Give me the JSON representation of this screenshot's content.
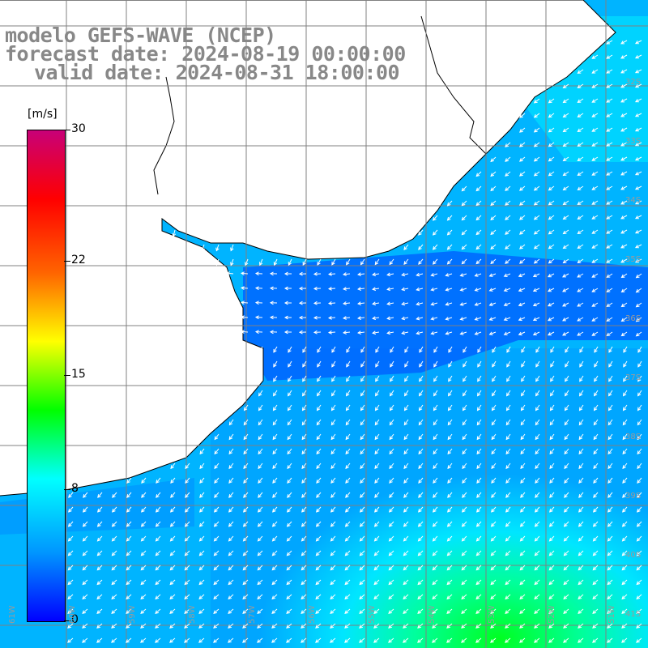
{
  "title": {
    "line1": "modelo GEFS-WAVE (NCEP)",
    "line2": "forecast date: 2024-08-19 00:00:00",
    "line3": "valid date: 2024-08-31 18:00:00"
  },
  "colorbar": {
    "unit": "[m/s]",
    "ticks": [
      {
        "value": 30,
        "label": "30"
      },
      {
        "value": 22,
        "label": "22"
      },
      {
        "value": 15,
        "label": "15"
      },
      {
        "value": 8,
        "label": "8"
      },
      {
        "value": 0,
        "label": "0"
      }
    ],
    "stops": [
      "#0000ff",
      "#0096ff",
      "#00ffff",
      "#00ff00",
      "#ffff00",
      "#ff6400",
      "#ff0000",
      "#c80078"
    ]
  },
  "map": {
    "land_color": "#ffffff",
    "grid_color": "#808080",
    "coast_color": "#000000",
    "arrow_color": "#ffffff",
    "lat_labels": [
      "32S",
      "33S",
      "34S",
      "35S",
      "36S",
      "37S",
      "38S",
      "39S",
      "40S",
      "41S"
    ],
    "lon_labels": [
      "61W",
      "60W",
      "59W",
      "58W",
      "57W",
      "56W",
      "55W",
      "54W",
      "53W",
      "52W",
      "51W"
    ]
  }
}
